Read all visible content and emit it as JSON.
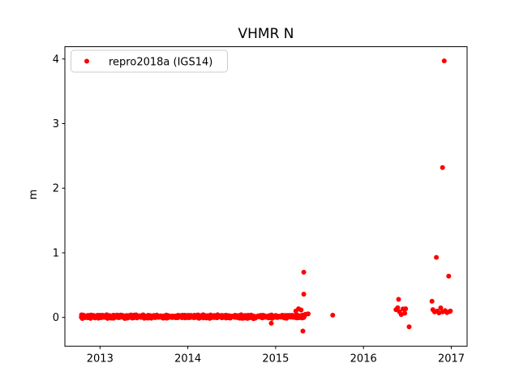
{
  "chart_data": {
    "type": "scatter",
    "title": "VHMR N",
    "xlabel": "",
    "ylabel": "m",
    "xlim": [
      2012.6,
      2017.18
    ],
    "ylim": [
      -0.445,
      4.19
    ],
    "x_ticks": [
      2013,
      2014,
      2015,
      2016,
      2017
    ],
    "y_ticks": [
      0,
      1,
      2,
      3,
      4
    ],
    "grid": false,
    "background_color": "#ffffff",
    "axis_color": "#000000",
    "legend": {
      "position": "upper left",
      "entries": [
        {
          "label": "repro2018a (IGS14)",
          "marker": "circle",
          "color": "#ff0000"
        }
      ]
    },
    "series": [
      {
        "name": "repro2018a (IGS14)",
        "marker_color": "#ff0000",
        "marker_radius_px": 3,
        "dense_band": {
          "x_start": 2012.785,
          "x_end": 2015.33,
          "y_center": 0.013,
          "y_spread": 0.035,
          "n_points": 900
        },
        "outliers": [
          [
            2014.95,
            -0.09
          ],
          [
            2015.23,
            0.1
          ],
          [
            2015.26,
            0.135
          ],
          [
            2015.29,
            0.115
          ],
          [
            2015.31,
            -0.21
          ],
          [
            2015.32,
            0.7
          ],
          [
            2015.32,
            0.36
          ],
          [
            2015.34,
            0.05
          ],
          [
            2015.37,
            0.055
          ],
          [
            2015.65,
            0.035
          ],
          [
            2016.37,
            0.12
          ],
          [
            2016.39,
            0.15
          ],
          [
            2016.4,
            0.28
          ],
          [
            2016.41,
            0.085
          ],
          [
            2016.43,
            0.045
          ],
          [
            2016.45,
            0.13
          ],
          [
            2016.47,
            0.065
          ],
          [
            2016.48,
            0.135
          ],
          [
            2016.52,
            -0.145
          ],
          [
            2016.78,
            0.25
          ],
          [
            2016.79,
            0.12
          ],
          [
            2016.81,
            0.085
          ],
          [
            2016.83,
            0.93
          ],
          [
            2016.84,
            0.1
          ],
          [
            2016.86,
            0.07
          ],
          [
            2016.88,
            0.148
          ],
          [
            2016.9,
            2.32
          ],
          [
            2016.9,
            0.085
          ],
          [
            2016.92,
            3.97
          ],
          [
            2016.93,
            0.105
          ],
          [
            2016.95,
            0.075
          ],
          [
            2016.97,
            0.64
          ],
          [
            2016.98,
            0.09
          ],
          [
            2016.99,
            0.1
          ]
        ]
      }
    ]
  }
}
